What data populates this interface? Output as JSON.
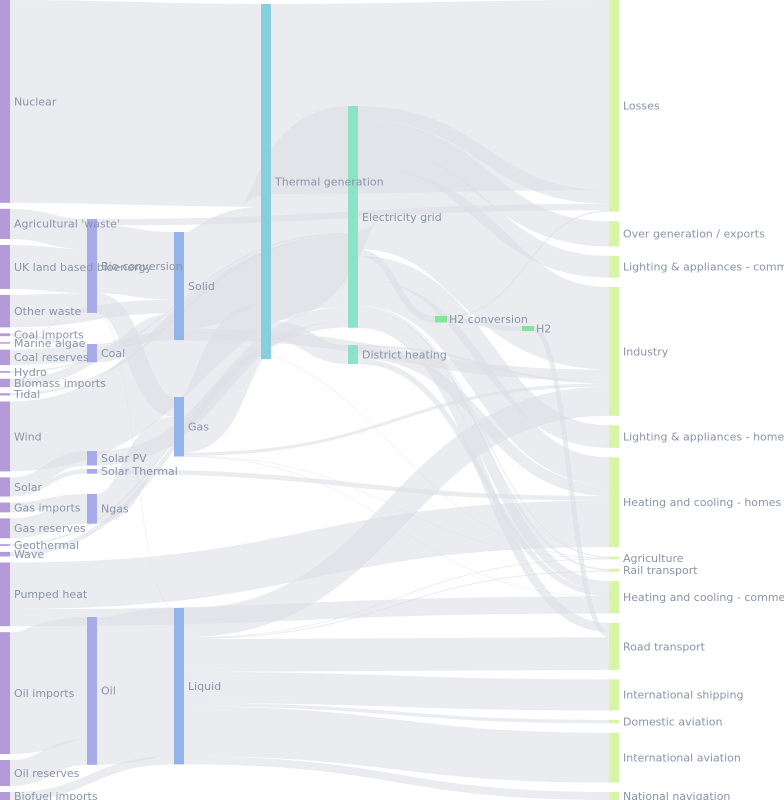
{
  "diagram": {
    "type": "sankey",
    "colors": {
      "link": "#dde0e6",
      "label": "#8a95a8",
      "column_0": "#b49ad8",
      "column_1": "#a9aae9",
      "column_2": "#93b4e8",
      "column_3": "#86cfdf",
      "electricity": "#8de3c8",
      "h2": "#86e59a",
      "sink": "#d6f5a6"
    },
    "nodes": [
      {
        "id": "nuclear",
        "label": "Nuclear"
      },
      {
        "id": "agri_waste",
        "label": "Agricultural 'waste'"
      },
      {
        "id": "uk_bio",
        "label": "UK land based bioenergy"
      },
      {
        "id": "other_waste",
        "label": "Other waste"
      },
      {
        "id": "coal_imports",
        "label": "Coal imports"
      },
      {
        "id": "marine_algae",
        "label": "Marine algae"
      },
      {
        "id": "coal_reserves",
        "label": "Coal reserves"
      },
      {
        "id": "hydro",
        "label": "Hydro"
      },
      {
        "id": "biomass_imports",
        "label": "Biomass imports"
      },
      {
        "id": "tidal",
        "label": "Tidal"
      },
      {
        "id": "wind",
        "label": "Wind"
      },
      {
        "id": "solar",
        "label": "Solar"
      },
      {
        "id": "gas_imports",
        "label": "Gas imports"
      },
      {
        "id": "gas_reserves",
        "label": "Gas reserves"
      },
      {
        "id": "geothermal",
        "label": "Geothermal"
      },
      {
        "id": "wave",
        "label": "Wave"
      },
      {
        "id": "pumped_heat",
        "label": "Pumped heat"
      },
      {
        "id": "oil_imports",
        "label": "Oil imports"
      },
      {
        "id": "oil_reserves",
        "label": "Oil reserves"
      },
      {
        "id": "biofuel_imports",
        "label": "Biofuel imports"
      },
      {
        "id": "bio_conversion",
        "label": "Bio-conversion"
      },
      {
        "id": "coal",
        "label": "Coal"
      },
      {
        "id": "solar_pv",
        "label": "Solar PV"
      },
      {
        "id": "solar_thermal",
        "label": "Solar Thermal"
      },
      {
        "id": "ngas",
        "label": "Ngas"
      },
      {
        "id": "oil",
        "label": "Oil"
      },
      {
        "id": "solid",
        "label": "Solid"
      },
      {
        "id": "gas",
        "label": "Gas"
      },
      {
        "id": "liquid",
        "label": "Liquid"
      },
      {
        "id": "thermal_generation",
        "label": "Thermal generation"
      },
      {
        "id": "electricity_grid",
        "label": "Electricity grid"
      },
      {
        "id": "district_heating",
        "label": "District heating"
      },
      {
        "id": "h2_conversion",
        "label": "H2 conversion"
      },
      {
        "id": "h2",
        "label": "H2"
      },
      {
        "id": "losses",
        "label": "Losses"
      },
      {
        "id": "over_generation",
        "label": "Over generation / exports"
      },
      {
        "id": "lighting_commercial",
        "label": "Lighting & appliances - commercial"
      },
      {
        "id": "industry",
        "label": "Industry"
      },
      {
        "id": "lighting_homes",
        "label": "Lighting & appliances - homes"
      },
      {
        "id": "heating_homes",
        "label": "Heating and cooling - homes"
      },
      {
        "id": "agriculture",
        "label": "Agriculture"
      },
      {
        "id": "rail_transport",
        "label": "Rail transport"
      },
      {
        "id": "heating_commercial",
        "label": "Heating and cooling - commercial"
      },
      {
        "id": "road_transport",
        "label": "Road transport"
      },
      {
        "id": "international_shipping",
        "label": "International shipping"
      },
      {
        "id": "domestic_aviation",
        "label": "Domestic aviation"
      },
      {
        "id": "international_aviation",
        "label": "International aviation"
      },
      {
        "id": "national_navigation",
        "label": "National navigation"
      }
    ],
    "links": [
      {
        "source": "agri_waste",
        "target": "bio_conversion",
        "value": 124.7
      },
      {
        "source": "bio_conversion",
        "target": "liquid",
        "value": 0.6
      },
      {
        "source": "bio_conversion",
        "target": "losses",
        "value": 26.9
      },
      {
        "source": "bio_conversion",
        "target": "solid",
        "value": 280.3
      },
      {
        "source": "bio_conversion",
        "target": "gas",
        "value": 81.1
      },
      {
        "source": "biofuel_imports",
        "target": "liquid",
        "value": 35
      },
      {
        "source": "biomass_imports",
        "target": "solid",
        "value": 35
      },
      {
        "source": "coal_imports",
        "target": "coal",
        "value": 11.6
      },
      {
        "source": "coal_reserves",
        "target": "coal",
        "value": 63.9
      },
      {
        "source": "coal",
        "target": "solid",
        "value": 75.6
      },
      {
        "source": "district_heating",
        "target": "industry",
        "value": 10.6
      },
      {
        "source": "district_heating",
        "target": "heating_commercial",
        "value": 22.5
      },
      {
        "source": "district_heating",
        "target": "heating_homes",
        "value": 46.2
      },
      {
        "source": "electricity_grid",
        "target": "over_generation",
        "value": 104.5
      },
      {
        "source": "electricity_grid",
        "target": "heating_homes",
        "value": 113.7
      },
      {
        "source": "electricity_grid",
        "target": "h2_conversion",
        "value": 27.1
      },
      {
        "source": "electricity_grid",
        "target": "industry",
        "value": 342.2
      },
      {
        "source": "electricity_grid",
        "target": "road_transport",
        "value": 37.8
      },
      {
        "source": "electricity_grid",
        "target": "agriculture",
        "value": 4.4
      },
      {
        "source": "electricity_grid",
        "target": "heating_commercial",
        "value": 40.7
      },
      {
        "source": "electricity_grid",
        "target": "losses",
        "value": 56.7
      },
      {
        "source": "electricity_grid",
        "target": "rail_transport",
        "value": 7.9
      },
      {
        "source": "electricity_grid",
        "target": "lighting_commercial",
        "value": 90.0
      },
      {
        "source": "electricity_grid",
        "target": "lighting_homes",
        "value": 93.5
      },
      {
        "source": "gas_imports",
        "target": "ngas",
        "value": 40.7
      },
      {
        "source": "gas_reserves",
        "target": "ngas",
        "value": 82.2
      },
      {
        "source": "gas",
        "target": "heating_commercial",
        "value": 0.1
      },
      {
        "source": "gas",
        "target": "industry",
        "value": 13.3
      },
      {
        "source": "gas",
        "target": "thermal_generation",
        "value": 230.6
      },
      {
        "source": "gas",
        "target": "agriculture",
        "value": 2.3
      },
      {
        "source": "geothermal",
        "target": "electricity_grid",
        "value": 7.1
      },
      {
        "source": "h2_conversion",
        "target": "h2",
        "value": 20.9
      },
      {
        "source": "h2_conversion",
        "target": "losses",
        "value": 6.2
      },
      {
        "source": "h2",
        "target": "road_transport",
        "value": 20.9
      },
      {
        "source": "hydro",
        "target": "electricity_grid",
        "value": 6.9
      },
      {
        "source": "liquid",
        "target": "industry",
        "value": 121.1
      },
      {
        "source": "liquid",
        "target": "international_shipping",
        "value": 128.7
      },
      {
        "source": "liquid",
        "target": "road_transport",
        "value": 135.8
      },
      {
        "source": "liquid",
        "target": "domestic_aviation",
        "value": 14.5
      },
      {
        "source": "liquid",
        "target": "international_aviation",
        "value": 206.3
      },
      {
        "source": "liquid",
        "target": "agriculture",
        "value": 3.6
      },
      {
        "source": "liquid",
        "target": "national_navigation",
        "value": 33.2
      },
      {
        "source": "liquid",
        "target": "rail_transport",
        "value": 4.4
      },
      {
        "source": "marine_algae",
        "target": "bio_conversion",
        "value": 4.4
      },
      {
        "source": "ngas",
        "target": "gas",
        "value": 122.9
      },
      {
        "source": "nuclear",
        "target": "thermal_generation",
        "value": 839.9
      },
      {
        "source": "oil_imports",
        "target": "oil",
        "value": 504.3
      },
      {
        "source": "oil_reserves",
        "target": "oil",
        "value": 107.7
      },
      {
        "source": "oil",
        "target": "liquid",
        "value": 611.9
      },
      {
        "source": "other_waste",
        "target": "solid",
        "value": 56.6
      },
      {
        "source": "other_waste",
        "target": "bio_conversion",
        "value": 77.8
      },
      {
        "source": "pumped_heat",
        "target": "heating_homes",
        "value": 193.0
      },
      {
        "source": "pumped_heat",
        "target": "heating_commercial",
        "value": 70.7
      },
      {
        "source": "solar_pv",
        "target": "electricity_grid",
        "value": 59.9
      },
      {
        "source": "solar_thermal",
        "target": "heating_homes",
        "value": 19.3
      },
      {
        "source": "solar",
        "target": "solar_thermal",
        "value": 19.3
      },
      {
        "source": "solar",
        "target": "solar_pv",
        "value": 59.9
      },
      {
        "source": "solid",
        "target": "agriculture",
        "value": 0.9
      },
      {
        "source": "solid",
        "target": "thermal_generation",
        "value": 400.1
      },
      {
        "source": "solid",
        "target": "industry",
        "value": 46.5
      },
      {
        "source": "thermal_generation",
        "target": "electricity_grid",
        "value": 525.5
      },
      {
        "source": "thermal_generation",
        "target": "losses",
        "value": 787.1
      },
      {
        "source": "thermal_generation",
        "target": "district_heating",
        "value": 79.3
      },
      {
        "source": "tidal",
        "target": "electricity_grid",
        "value": 9.5
      },
      {
        "source": "uk_bio",
        "target": "bio_conversion",
        "value": 182.0
      },
      {
        "source": "wave",
        "target": "electricity_grid",
        "value": 19.0
      },
      {
        "source": "wind",
        "target": "electricity_grid",
        "value": 289.4
      }
    ]
  }
}
